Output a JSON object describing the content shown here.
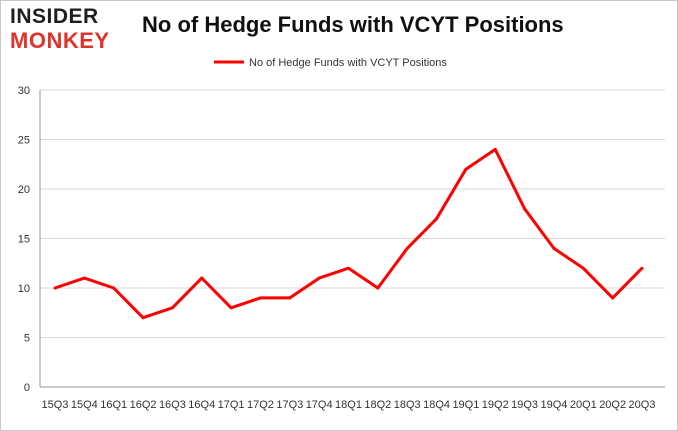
{
  "logo": {
    "line1": "INSIDER",
    "line2": "MONKEY"
  },
  "chart_data": {
    "type": "line",
    "title": "No of Hedge Funds with VCYT Positions",
    "xlabel": "",
    "ylabel": "",
    "categories": [
      "15Q3",
      "15Q4",
      "16Q1",
      "16Q2",
      "16Q3",
      "16Q4",
      "17Q1",
      "17Q2",
      "17Q3",
      "17Q4",
      "18Q1",
      "18Q2",
      "18Q3",
      "18Q4",
      "19Q1",
      "19Q2",
      "19Q3",
      "19Q4",
      "20Q1",
      "20Q2",
      "20Q3"
    ],
    "series": [
      {
        "name": "No of Hedge Funds with VCYT Positions",
        "values": [
          10,
          11,
          10,
          7,
          8,
          11,
          8,
          9,
          9,
          11,
          12,
          10,
          14,
          17,
          22,
          24,
          18,
          14,
          12,
          9,
          12
        ]
      }
    ],
    "ylim": [
      0,
      30
    ],
    "yticks": [
      0,
      5,
      10,
      15,
      20,
      25,
      30
    ],
    "grid": true,
    "legend": "top-center",
    "colors": {
      "series": "#ff0000",
      "grid": "#d9d9d9",
      "logo_accent": "#e0342b"
    }
  }
}
